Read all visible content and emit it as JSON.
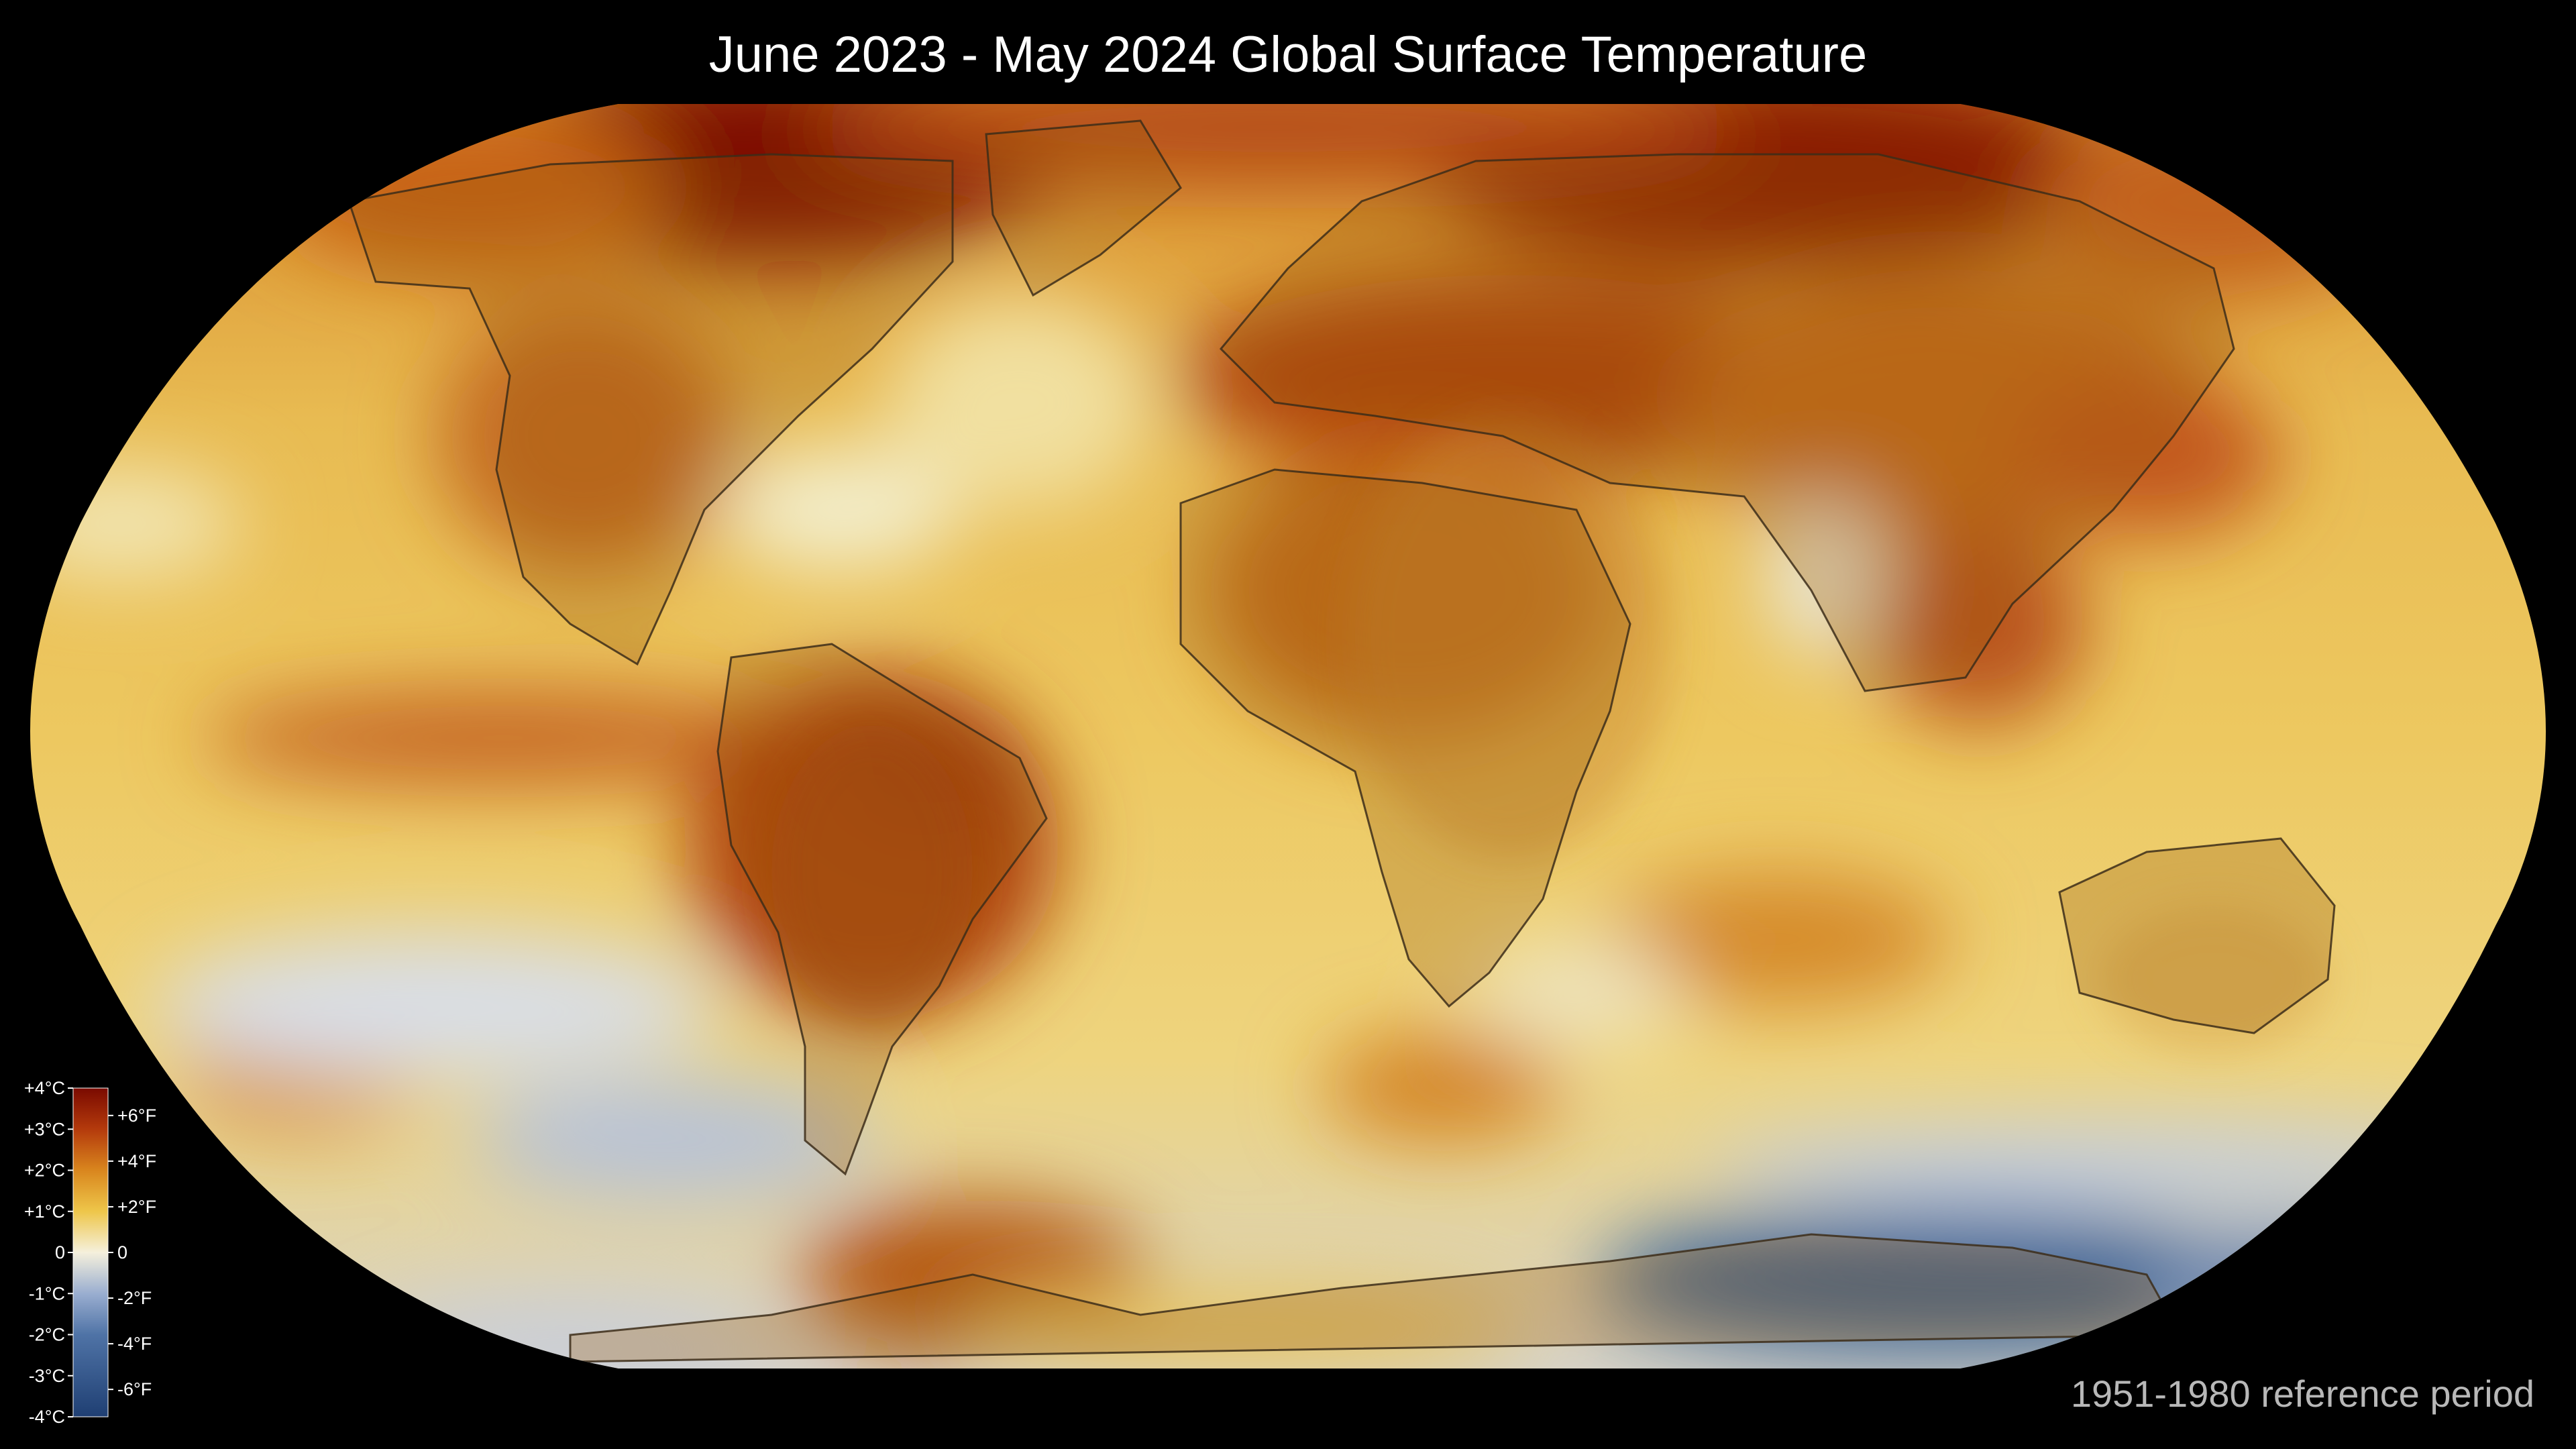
{
  "title": "June 2023 - May 2024 Global Surface Temperature",
  "reference_note": "1951-1980 reference period",
  "legend": {
    "celsius_labels": [
      "+4°C",
      "+3°C",
      "+2°C",
      "+1°C",
      "0",
      "-1°C",
      "-2°C",
      "-3°C",
      "-4°C"
    ],
    "fahrenheit_labels": [
      "+6°F",
      "+4°F",
      "+2°F",
      "0",
      "-2°F",
      "-4°F",
      "-6°F"
    ],
    "colors": [
      "#7a0a00",
      "#b43a0c",
      "#d9861e",
      "#eec64a",
      "#f5f0dc",
      "#9aaed0",
      "#4f73a6",
      "#1f3f73"
    ]
  },
  "map": {
    "projection": "Robinson",
    "ocean_base_color": "#e9c964",
    "land_tint": "#c58a2a"
  }
}
